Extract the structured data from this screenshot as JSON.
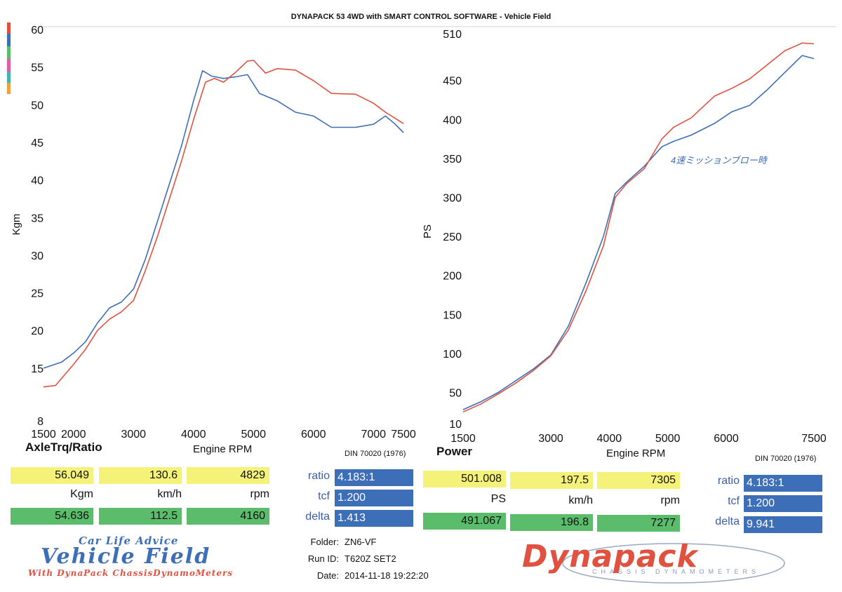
{
  "header": {
    "title": "DYNAPACK 53 4WD with SMART CONTROL SOFTWARE - Vehicle Field"
  },
  "colors": {
    "red_series": "#e0523f",
    "blue_series": "#3d6fb8",
    "yellow_box": "#f5f27a",
    "green_box": "#5bbd6b",
    "blue_box": "#3d6fb8"
  },
  "chart_data": [
    {
      "type": "line",
      "xlabel": "Engine RPM",
      "ylabel": "Kgm",
      "xlim": [
        1500,
        7500
      ],
      "ylim": [
        8,
        60
      ],
      "xticks": [
        "1500",
        "2000",
        "3000",
        "4000",
        "5000",
        "6000",
        "7000",
        "7500"
      ],
      "xtick_values": [
        1500,
        2000,
        3000,
        4000,
        5000,
        6000,
        7000,
        7500
      ],
      "yticks": [
        "8",
        "15",
        "20",
        "25",
        "30",
        "35",
        "40",
        "45",
        "50",
        "55",
        "60"
      ],
      "ytick_values": [
        8,
        15,
        20,
        25,
        30,
        35,
        40,
        45,
        50,
        55,
        60
      ],
      "series": [
        {
          "color": "#3d6fb8",
          "x": [
            1500,
            1800,
            2000,
            2200,
            2400,
            2600,
            2800,
            3000,
            3200,
            3400,
            3600,
            3800,
            4000,
            4150,
            4200,
            4300,
            4500,
            4700,
            4900,
            5100,
            5400,
            5700,
            6000,
            6300,
            6700,
            7000,
            7200,
            7350,
            7500
          ],
          "values": [
            15.0,
            15.8,
            17.0,
            18.5,
            21.0,
            23.0,
            23.8,
            25.5,
            29.5,
            34.5,
            39.5,
            44.5,
            50.5,
            54.5,
            54.3,
            53.8,
            53.5,
            53.7,
            54.0,
            51.5,
            50.5,
            49.0,
            48.5,
            47.0,
            47.0,
            47.4,
            48.5,
            47.5,
            46.3
          ]
        },
        {
          "color": "#e0523f",
          "x": [
            1500,
            1700,
            2000,
            2200,
            2400,
            2600,
            2800,
            3000,
            3200,
            3400,
            3600,
            3800,
            4000,
            4200,
            4350,
            4500,
            4700,
            4900,
            5000,
            5200,
            5400,
            5700,
            6000,
            6300,
            6700,
            7000,
            7200,
            7500
          ],
          "values": [
            12.5,
            12.7,
            15.5,
            17.5,
            20.0,
            21.5,
            22.5,
            24.0,
            28.0,
            32.5,
            37.5,
            42.5,
            48.0,
            53.0,
            53.5,
            53.0,
            54.3,
            55.8,
            55.9,
            54.2,
            54.8,
            54.6,
            53.2,
            51.5,
            51.4,
            50.2,
            49.0,
            47.5
          ]
        }
      ]
    },
    {
      "type": "line",
      "xlabel": "Engine RPM",
      "ylabel": "PS",
      "xlim": [
        1500,
        7500
      ],
      "ylim": [
        10,
        510
      ],
      "xticks": [
        "1500",
        "3000",
        "4000",
        "5000",
        "6000",
        "7500"
      ],
      "xtick_values": [
        1500,
        3000,
        4000,
        5000,
        6000,
        7500
      ],
      "yticks": [
        "10",
        "50",
        "100",
        "150",
        "200",
        "250",
        "300",
        "350",
        "400",
        "450",
        "510"
      ],
      "ytick_values": [
        10,
        50,
        100,
        150,
        200,
        250,
        300,
        350,
        400,
        450,
        510
      ],
      "series": [
        {
          "color": "#3d6fb8",
          "x": [
            1500,
            1800,
            2100,
            2400,
            2700,
            3000,
            3300,
            3600,
            3900,
            4100,
            4300,
            4600,
            4900,
            5100,
            5400,
            5800,
            6100,
            6400,
            6700,
            7000,
            7300,
            7500
          ],
          "values": [
            28,
            38,
            50,
            65,
            80,
            98,
            135,
            190,
            250,
            305,
            320,
            340,
            365,
            372,
            380,
            395,
            410,
            418,
            438,
            460,
            482,
            478
          ]
        },
        {
          "color": "#e0523f",
          "x": [
            1500,
            1800,
            2100,
            2400,
            2700,
            3000,
            3300,
            3600,
            3900,
            4100,
            4300,
            4600,
            4900,
            5100,
            5400,
            5800,
            6100,
            6400,
            6700,
            7000,
            7300,
            7500
          ],
          "values": [
            25,
            35,
            48,
            62,
            78,
            97,
            130,
            180,
            238,
            300,
            318,
            337,
            375,
            390,
            402,
            430,
            440,
            452,
            470,
            488,
            498,
            497
          ]
        }
      ]
    }
  ],
  "torque": {
    "title": "AxleTrq/Ratio",
    "standard": "DIN 70020 (1976)",
    "values": {
      "current": {
        "kgm": "56.049",
        "kmh": "130.6",
        "rpm": "4829"
      },
      "reference": {
        "kgm": "54.636",
        "kmh": "112.5",
        "rpm": "4160"
      }
    },
    "units": {
      "kgm": "Kgm",
      "kmh": "km/h",
      "rpm": "rpm"
    },
    "params": {
      "ratio_label": "ratio",
      "ratio": "4.183:1",
      "tcf_label": "tcf",
      "tcf": "1.200",
      "delta_label": "delta",
      "delta": "1.413"
    }
  },
  "power": {
    "title": "Power",
    "standard": "DIN 70020 (1976)",
    "values": {
      "current": {
        "ps": "501.008",
        "kmh": "197.5",
        "rpm": "7305"
      },
      "reference": {
        "ps": "491.067",
        "kmh": "196.8",
        "rpm": "7277"
      }
    },
    "units": {
      "ps": "PS",
      "kmh": "km/h",
      "rpm": "rpm"
    },
    "params": {
      "ratio_label": "ratio",
      "ratio": "4.183:1",
      "tcf_label": "tcf",
      "tcf": "1.200",
      "delta_label": "delta",
      "delta": "9.941"
    }
  },
  "info": {
    "folder_label": "Folder:",
    "folder": "ZN6-VF",
    "run_id_label": "Run ID:",
    "run_id": "T620Z SET2",
    "date_label": "Date:",
    "date": "2014-11-18 19:22:20"
  },
  "logos": {
    "shop_tagline": "Car  Life  Advice",
    "shop_name": "Vehicle Field",
    "shop_subline": "With  DynaPack  ChassisDynamoMeters",
    "dyna_name": "Dynapack",
    "dyna_sub": "CHASSIS DYNAMOMETERS"
  },
  "notes": {
    "handwritten": "4速ミッションブロー時"
  }
}
